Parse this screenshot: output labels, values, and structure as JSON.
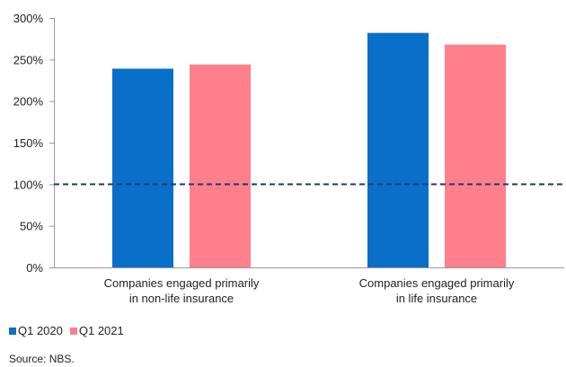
{
  "chart_data": {
    "type": "bar",
    "categories": [
      [
        "Companies engaged primarily",
        "in non-life insurance"
      ],
      [
        "Companies engaged primarily",
        "in life insurance"
      ]
    ],
    "series": [
      {
        "name": "Q1 2020",
        "color": "#0a6fc9",
        "values": [
          239,
          282
        ]
      },
      {
        "name": "Q1 2021",
        "color": "#ff808c",
        "values": [
          244,
          268
        ]
      }
    ],
    "ylim": [
      0,
      300
    ],
    "yticks": [
      0,
      50,
      100,
      150,
      200,
      250,
      300
    ],
    "ytick_labels": [
      "0%",
      "50%",
      "100%",
      "150%",
      "200%",
      "250%",
      "300%"
    ],
    "reference_line": {
      "value": 100,
      "style": "dashed",
      "color": "#1f3b73"
    },
    "grid": false,
    "legend_position": "bottom-left"
  },
  "source": "Source: NBS."
}
